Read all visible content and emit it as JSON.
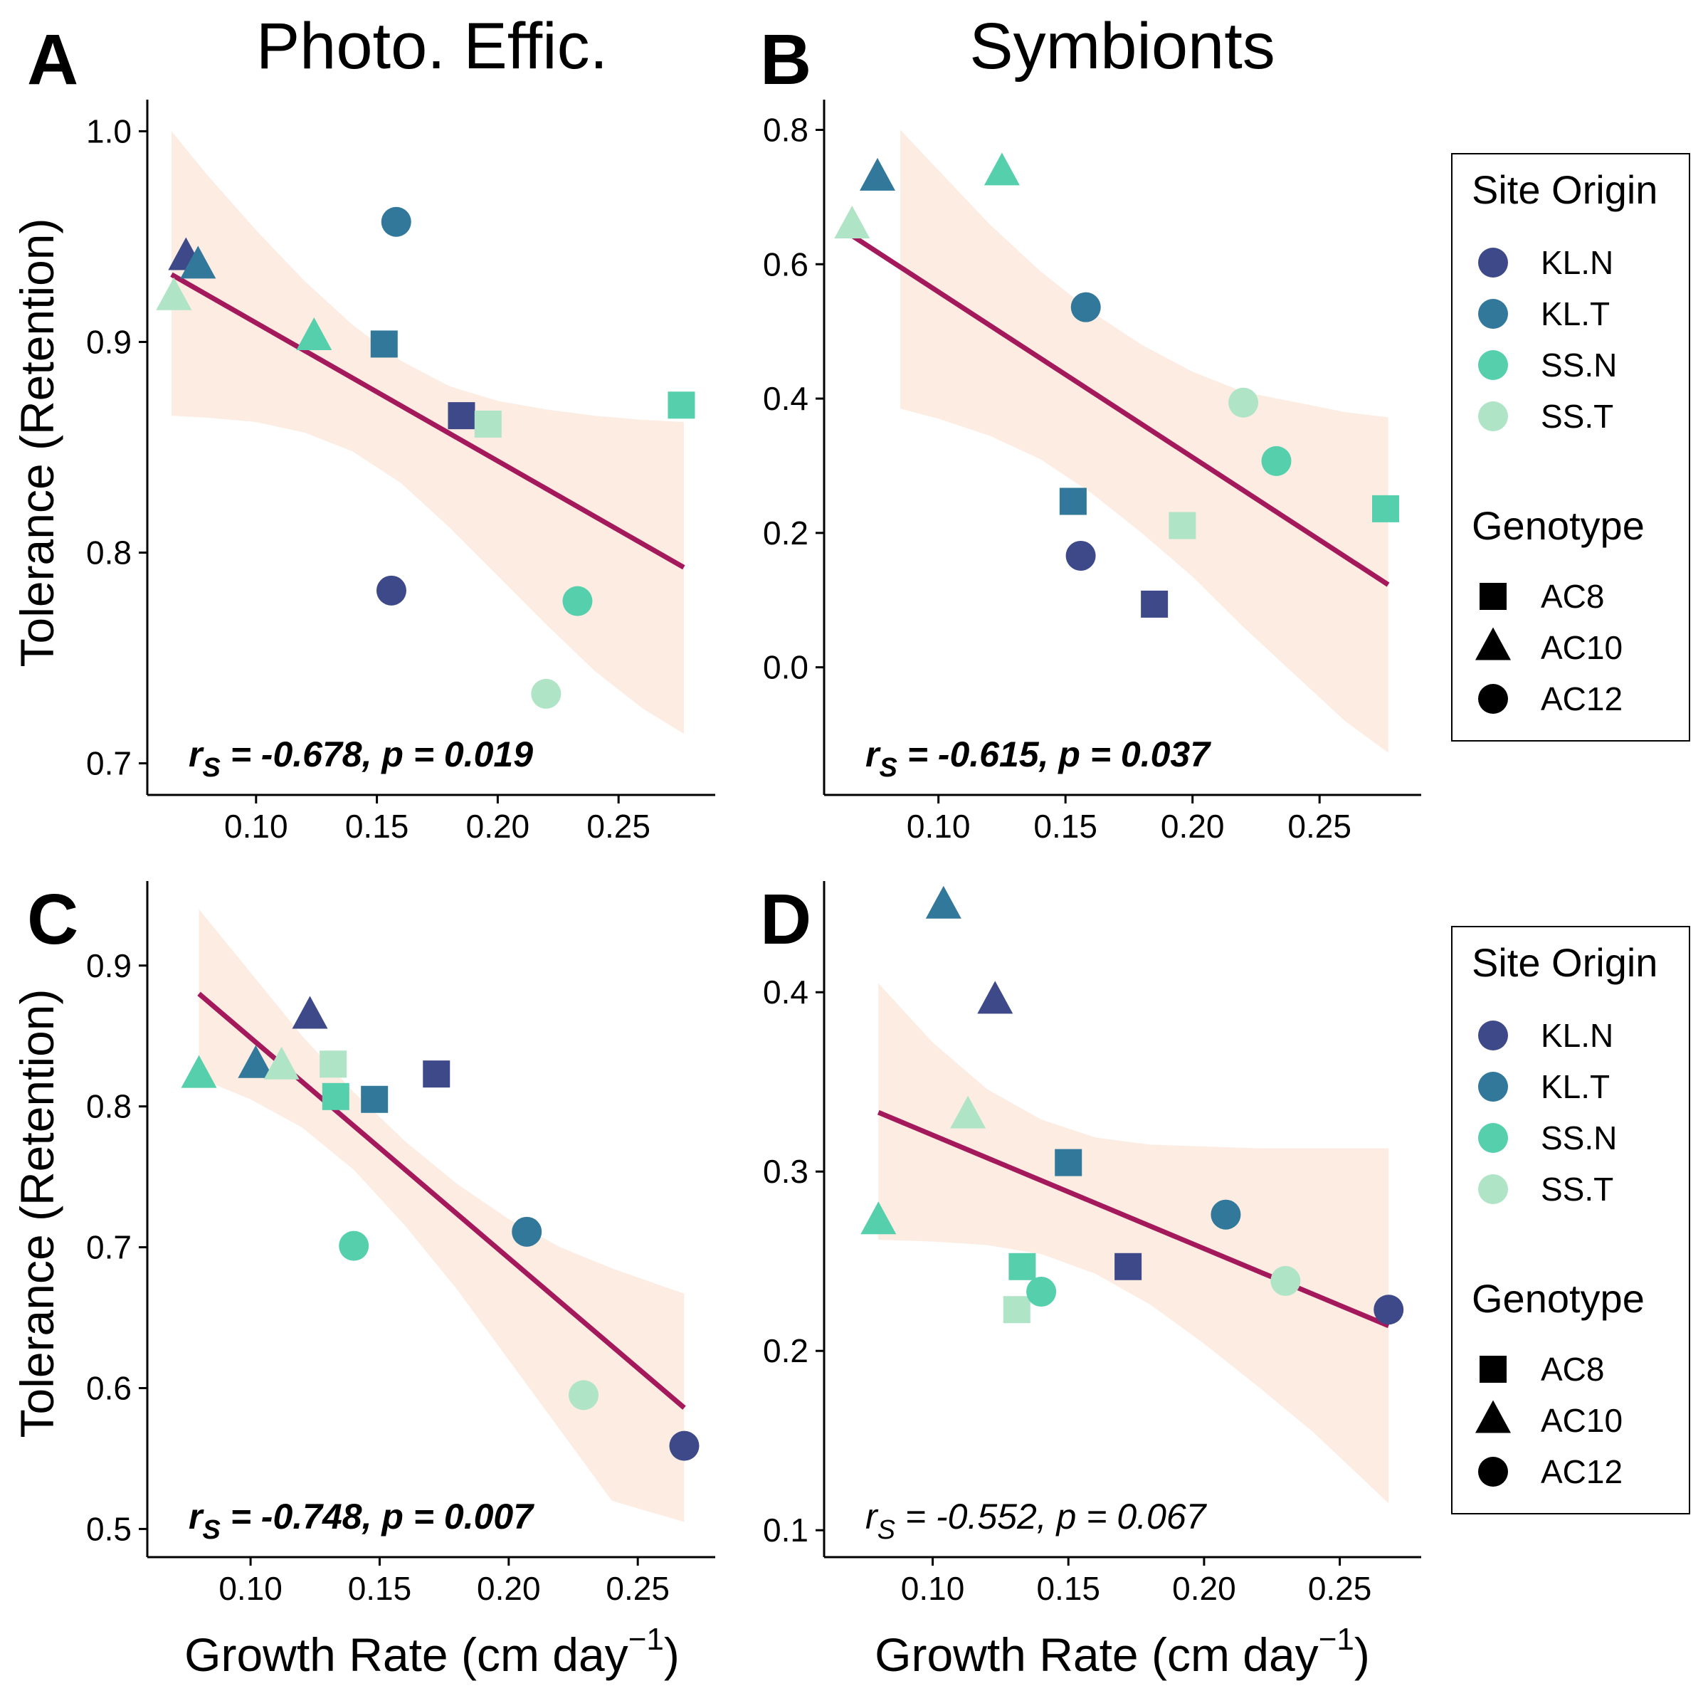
{
  "column_titles": [
    "Photo. Effic.",
    "Symbionts"
  ],
  "y_axis_title": "Tolerance (Retention)",
  "x_axis_title": {
    "text": "Growth Rate (cm day",
    "superscript": "−1",
    "close": ")"
  },
  "colors": {
    "KL.N": "#3e4989",
    "KL.T": "#31789b",
    "SS.N": "#56cfad",
    "SS.T": "#b0e4c6",
    "regression_line": "#a3195b",
    "confidence_band": "#fcece2"
  },
  "legends": [
    {
      "site_title": "Site Origin",
      "site_entries": [
        "KL.N",
        "KL.T",
        "SS.N",
        "SS.T"
      ],
      "genotype_title": "Genotype",
      "genotype_entries": [
        {
          "label": "AC8",
          "shape": "square"
        },
        {
          "label": "AC10",
          "shape": "triangle"
        },
        {
          "label": "AC12",
          "shape": "circle"
        }
      ]
    },
    {
      "site_title": "Site Origin",
      "site_entries": [
        "KL.N",
        "KL.T",
        "SS.N",
        "SS.T"
      ],
      "genotype_title": "Genotype",
      "genotype_entries": [
        {
          "label": "AC8",
          "shape": "square"
        },
        {
          "label": "AC10",
          "shape": "triangle"
        },
        {
          "label": "AC12",
          "shape": "circle"
        }
      ]
    }
  ],
  "chart_data": [
    {
      "panel": "A",
      "type": "scatter",
      "column_title": "Photo. Effic.",
      "ylabel": "Tolerance (Retention)",
      "xlabel": "",
      "xlim": [
        0.055,
        0.29
      ],
      "ylim": [
        0.685,
        1.015
      ],
      "xticks": [
        "0.10",
        "0.15",
        "0.20",
        "0.25"
      ],
      "yticks": [
        "0.7",
        "0.8",
        "0.9",
        "1.0"
      ],
      "stat": {
        "r": "-0.678",
        "p": "0.019",
        "bold": true
      },
      "regression": {
        "x": [
          0.065,
          0.277
        ],
        "y": [
          0.932,
          0.793
        ]
      },
      "confidence_band": {
        "x": [
          0.065,
          0.08,
          0.1,
          0.12,
          0.14,
          0.16,
          0.18,
          0.2,
          0.22,
          0.24,
          0.26,
          0.277
        ],
        "upper": [
          1.0,
          0.979,
          0.953,
          0.929,
          0.908,
          0.891,
          0.879,
          0.872,
          0.868,
          0.865,
          0.863,
          0.862
        ],
        "lower": [
          0.865,
          0.864,
          0.862,
          0.857,
          0.848,
          0.833,
          0.812,
          0.789,
          0.766,
          0.744,
          0.726,
          0.714
        ]
      },
      "points": [
        {
          "site": "KL.N",
          "genotype": "AC10",
          "x": 0.071,
          "y": 0.94
        },
        {
          "site": "KL.T",
          "genotype": "AC10",
          "x": 0.076,
          "y": 0.936
        },
        {
          "site": "SS.T",
          "genotype": "AC10",
          "x": 0.066,
          "y": 0.921
        },
        {
          "site": "SS.N",
          "genotype": "AC10",
          "x": 0.124,
          "y": 0.902
        },
        {
          "site": "KL.T",
          "genotype": "AC12",
          "x": 0.158,
          "y": 0.957
        },
        {
          "site": "KL.T",
          "genotype": "AC8",
          "x": 0.153,
          "y": 0.899
        },
        {
          "site": "KL.N",
          "genotype": "AC8",
          "x": 0.185,
          "y": 0.865
        },
        {
          "site": "SS.T",
          "genotype": "AC8",
          "x": 0.196,
          "y": 0.861
        },
        {
          "site": "SS.N",
          "genotype": "AC8",
          "x": 0.276,
          "y": 0.87
        },
        {
          "site": "KL.N",
          "genotype": "AC12",
          "x": 0.156,
          "y": 0.782
        },
        {
          "site": "SS.N",
          "genotype": "AC12",
          "x": 0.233,
          "y": 0.777
        },
        {
          "site": "SS.T",
          "genotype": "AC12",
          "x": 0.22,
          "y": 0.733
        }
      ]
    },
    {
      "panel": "B",
      "type": "scatter",
      "column_title": "Symbionts",
      "ylabel": "",
      "xlabel": "",
      "xlim": [
        0.055,
        0.29
      ],
      "ylim": [
        -0.19,
        0.845
      ],
      "xticks": [
        "0.10",
        "0.15",
        "0.20",
        "0.25"
      ],
      "yticks": [
        "0.0",
        "0.2",
        "0.4",
        "0.6",
        "0.8"
      ],
      "stat": {
        "r": "-0.615",
        "p": "0.037",
        "bold": true
      },
      "regression": {
        "x": [
          0.065,
          0.277
        ],
        "y": [
          0.645,
          0.123
        ]
      },
      "confidence_band": {
        "x": [
          0.085,
          0.1,
          0.12,
          0.14,
          0.16,
          0.18,
          0.2,
          0.22,
          0.24,
          0.26,
          0.277
        ],
        "upper": [
          0.8,
          0.74,
          0.66,
          0.59,
          0.53,
          0.48,
          0.44,
          0.41,
          0.395,
          0.38,
          0.372
        ],
        "lower": [
          0.385,
          0.37,
          0.345,
          0.31,
          0.26,
          0.2,
          0.135,
          0.06,
          -0.01,
          -0.08,
          -0.127
        ]
      },
      "points": [
        {
          "site": "KL.T",
          "genotype": "AC10",
          "x": 0.076,
          "y": 0.728
        },
        {
          "site": "SS.N",
          "genotype": "AC10",
          "x": 0.125,
          "y": 0.736
        },
        {
          "site": "SS.T",
          "genotype": "AC10",
          "x": 0.066,
          "y": 0.657
        },
        {
          "site": "KL.T",
          "genotype": "AC12",
          "x": 0.158,
          "y": 0.536
        },
        {
          "site": "SS.T",
          "genotype": "AC12",
          "x": 0.22,
          "y": 0.394
        },
        {
          "site": "SS.N",
          "genotype": "AC12",
          "x": 0.233,
          "y": 0.307
        },
        {
          "site": "SS.N",
          "genotype": "AC8",
          "x": 0.276,
          "y": 0.236
        },
        {
          "site": "KL.T",
          "genotype": "AC8",
          "x": 0.153,
          "y": 0.247
        },
        {
          "site": "SS.T",
          "genotype": "AC8",
          "x": 0.196,
          "y": 0.211
        },
        {
          "site": "KL.N",
          "genotype": "AC12",
          "x": 0.156,
          "y": 0.166
        },
        {
          "site": "KL.N",
          "genotype": "AC8",
          "x": 0.185,
          "y": 0.094
        }
      ]
    },
    {
      "panel": "C",
      "type": "scatter",
      "column_title": "",
      "ylabel": "Tolerance (Retention)",
      "xlabel": "Growth Rate (cm day⁻¹)",
      "xlim": [
        0.06,
        0.28
      ],
      "ylim": [
        0.48,
        0.96
      ],
      "xticks": [
        "0.10",
        "0.15",
        "0.20",
        "0.25"
      ],
      "yticks": [
        "0.5",
        "0.6",
        "0.7",
        "0.8",
        "0.9"
      ],
      "stat": {
        "r": "-0.748",
        "p": "0.007",
        "bold": true
      },
      "regression": {
        "x": [
          0.08,
          0.268
        ],
        "y": [
          0.88,
          0.586
        ]
      },
      "confidence_band": {
        "x": [
          0.08,
          0.1,
          0.12,
          0.14,
          0.16,
          0.18,
          0.2,
          0.22,
          0.24,
          0.268
        ],
        "upper": [
          0.94,
          0.895,
          0.85,
          0.81,
          0.775,
          0.745,
          0.72,
          0.7,
          0.685,
          0.667
        ],
        "lower": [
          0.82,
          0.805,
          0.785,
          0.755,
          0.715,
          0.67,
          0.62,
          0.57,
          0.52,
          0.505
        ]
      },
      "points": [
        {
          "site": "KL.N",
          "genotype": "AC10",
          "x": 0.123,
          "y": 0.864
        },
        {
          "site": "SS.N",
          "genotype": "AC10",
          "x": 0.08,
          "y": 0.822
        },
        {
          "site": "KL.T",
          "genotype": "AC10",
          "x": 0.102,
          "y": 0.829
        },
        {
          "site": "SS.T",
          "genotype": "AC10",
          "x": 0.112,
          "y": 0.828
        },
        {
          "site": "SS.T",
          "genotype": "AC8",
          "x": 0.132,
          "y": 0.83
        },
        {
          "site": "SS.N",
          "genotype": "AC8",
          "x": 0.133,
          "y": 0.807
        },
        {
          "site": "KL.T",
          "genotype": "AC8",
          "x": 0.148,
          "y": 0.805
        },
        {
          "site": "KL.N",
          "genotype": "AC8",
          "x": 0.172,
          "y": 0.823
        },
        {
          "site": "SS.N",
          "genotype": "AC12",
          "x": 0.14,
          "y": 0.701
        },
        {
          "site": "KL.T",
          "genotype": "AC12",
          "x": 0.207,
          "y": 0.711
        },
        {
          "site": "SS.T",
          "genotype": "AC12",
          "x": 0.229,
          "y": 0.595
        },
        {
          "site": "KL.N",
          "genotype": "AC12",
          "x": 0.268,
          "y": 0.559
        }
      ]
    },
    {
      "panel": "D",
      "type": "scatter",
      "column_title": "",
      "ylabel": "",
      "xlabel": "Growth Rate (cm day⁻¹)",
      "xlim": [
        0.06,
        0.28
      ],
      "ylim": [
        0.085,
        0.462
      ],
      "xticks": [
        "0.10",
        "0.15",
        "0.20",
        "0.25"
      ],
      "yticks": [
        "0.1",
        "0.2",
        "0.3",
        "0.4"
      ],
      "stat": {
        "r": "-0.552",
        "p": "0.067",
        "bold": false
      },
      "regression": {
        "x": [
          0.08,
          0.268
        ],
        "y": [
          0.333,
          0.214
        ]
      },
      "confidence_band": {
        "x": [
          0.08,
          0.1,
          0.12,
          0.14,
          0.16,
          0.18,
          0.2,
          0.22,
          0.24,
          0.268
        ],
        "upper": [
          0.405,
          0.372,
          0.346,
          0.329,
          0.319,
          0.315,
          0.314,
          0.313,
          0.313,
          0.313
        ],
        "lower": [
          0.262,
          0.261,
          0.259,
          0.254,
          0.243,
          0.226,
          0.204,
          0.18,
          0.155,
          0.115
        ]
      },
      "points": [
        {
          "site": "KL.T",
          "genotype": "AC10",
          "x": 0.104,
          "y": 0.448
        },
        {
          "site": "KL.N",
          "genotype": "AC10",
          "x": 0.123,
          "y": 0.395
        },
        {
          "site": "SS.T",
          "genotype": "AC10",
          "x": 0.113,
          "y": 0.331
        },
        {
          "site": "SS.N",
          "genotype": "AC10",
          "x": 0.08,
          "y": 0.272
        },
        {
          "site": "KL.T",
          "genotype": "AC8",
          "x": 0.15,
          "y": 0.305
        },
        {
          "site": "SS.N",
          "genotype": "AC8",
          "x": 0.133,
          "y": 0.247
        },
        {
          "site": "KL.N",
          "genotype": "AC8",
          "x": 0.172,
          "y": 0.247
        },
        {
          "site": "SS.T",
          "genotype": "AC8",
          "x": 0.131,
          "y": 0.223
        },
        {
          "site": "SS.N",
          "genotype": "AC12",
          "x": 0.14,
          "y": 0.233
        },
        {
          "site": "KL.T",
          "genotype": "AC12",
          "x": 0.208,
          "y": 0.276
        },
        {
          "site": "SS.T",
          "genotype": "AC12",
          "x": 0.23,
          "y": 0.239
        },
        {
          "site": "KL.N",
          "genotype": "AC12",
          "x": 0.268,
          "y": 0.223
        }
      ]
    }
  ]
}
